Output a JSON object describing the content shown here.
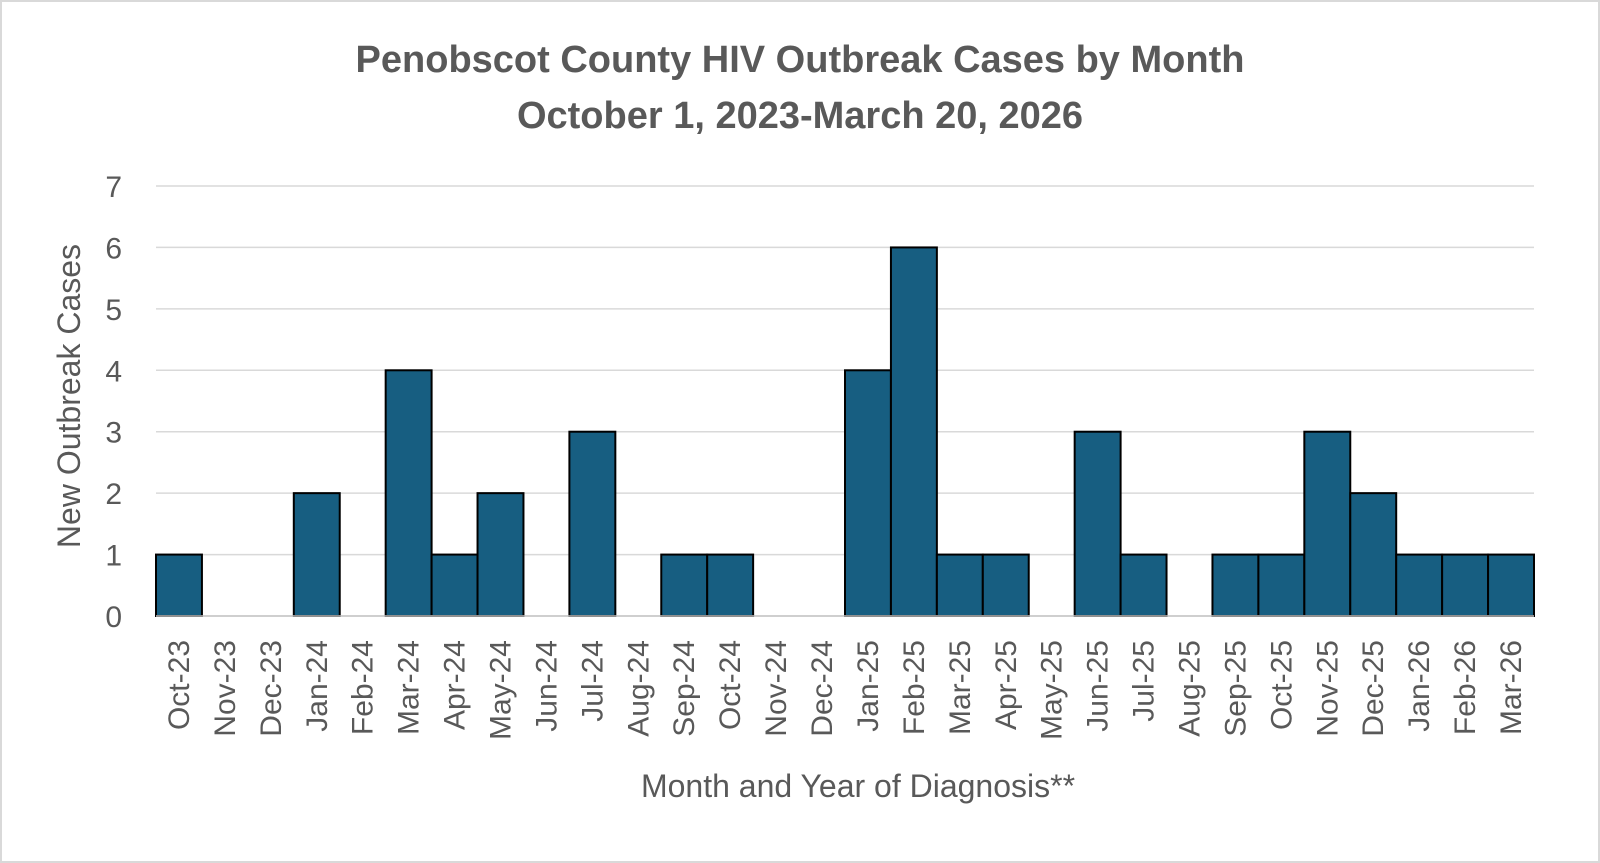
{
  "chart_data": {
    "type": "bar",
    "title": "Penobscot County HIV Outbreak Cases by Month",
    "subtitle": "October 1, 2023-March 20, 2026",
    "xlabel": "Month and Year of Diagnosis**",
    "ylabel": "New Outbreak Cases",
    "ylim": [
      0,
      7
    ],
    "yticks": [
      0,
      1,
      2,
      3,
      4,
      5,
      6,
      7
    ],
    "grid": true,
    "legend": "none",
    "bar_color": "#175e81",
    "categories": [
      "Oct-23",
      "Nov-23",
      "Dec-23",
      "Jan-24",
      "Feb-24",
      "Mar-24",
      "Apr-24",
      "May-24",
      "Jun-24",
      "Jul-24",
      "Aug-24",
      "Sep-24",
      "Oct-24",
      "Nov-24",
      "Dec-24",
      "Jan-25",
      "Feb-25",
      "Mar-25",
      "Apr-25",
      "May-25",
      "Jun-25",
      "Jul-25",
      "Aug-25",
      "Sep-25",
      "Oct-25",
      "Nov-25",
      "Dec-25",
      "Jan-26",
      "Feb-26",
      "Mar-26"
    ],
    "values": [
      1,
      0,
      0,
      2,
      0,
      4,
      1,
      2,
      0,
      3,
      0,
      1,
      1,
      0,
      0,
      4,
      6,
      1,
      1,
      0,
      3,
      1,
      0,
      1,
      1,
      3,
      2,
      1,
      1,
      1
    ]
  }
}
